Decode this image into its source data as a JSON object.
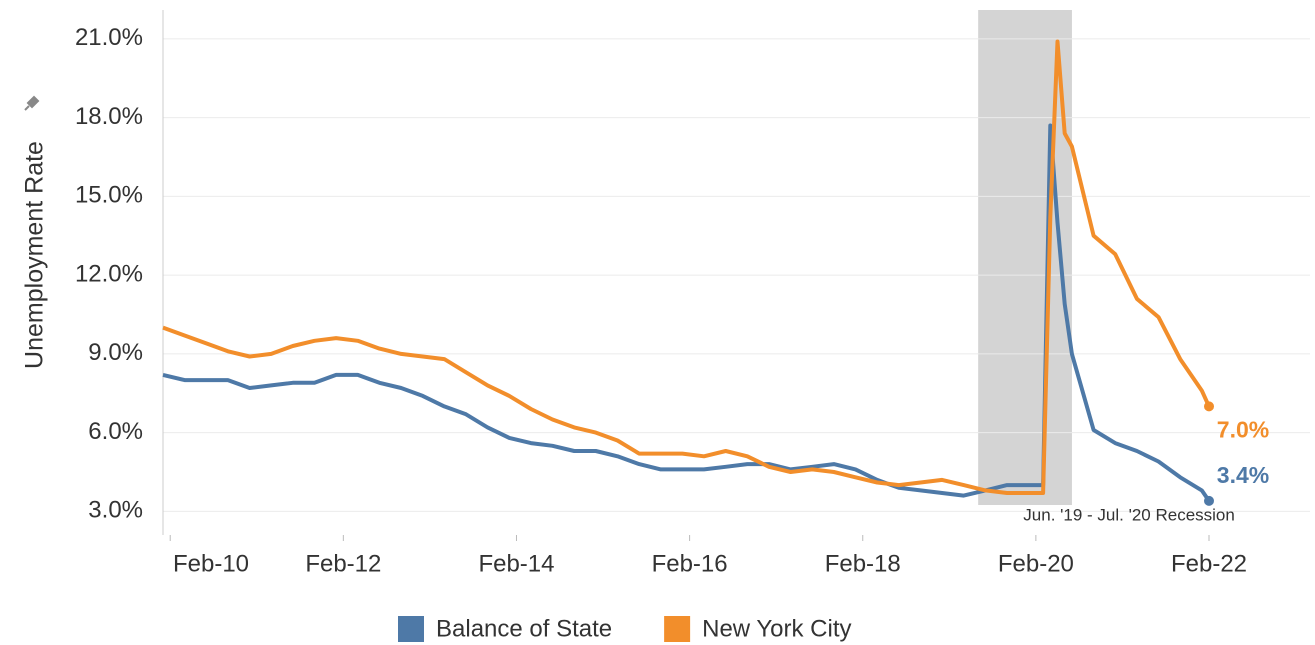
{
  "chart_data": {
    "type": "line",
    "y_label": "Unemployment Rate",
    "x": [
      "2010-01",
      "2010-04",
      "2010-07",
      "2010-10",
      "2011-01",
      "2011-04",
      "2011-07",
      "2011-10",
      "2012-01",
      "2012-04",
      "2012-07",
      "2012-10",
      "2013-01",
      "2013-04",
      "2013-07",
      "2013-10",
      "2014-01",
      "2014-04",
      "2014-07",
      "2014-10",
      "2015-01",
      "2015-04",
      "2015-07",
      "2015-10",
      "2016-01",
      "2016-04",
      "2016-07",
      "2016-10",
      "2017-01",
      "2017-04",
      "2017-07",
      "2017-10",
      "2018-01",
      "2018-04",
      "2018-07",
      "2018-10",
      "2019-01",
      "2019-04",
      "2019-07",
      "2019-10",
      "2020-01",
      "2020-02",
      "2020-03",
      "2020-04",
      "2020-05",
      "2020-06",
      "2020-07",
      "2020-10",
      "2021-01",
      "2021-04",
      "2021-07",
      "2021-10",
      "2022-01",
      "2022-02"
    ],
    "series": [
      {
        "name": "Balance of State",
        "color": "#4e79a7",
        "end_label": "3.4%",
        "values": [
          8.2,
          8.0,
          8.0,
          8.0,
          7.7,
          7.8,
          7.9,
          7.9,
          8.2,
          8.2,
          7.9,
          7.7,
          7.4,
          7.0,
          6.7,
          6.2,
          5.8,
          5.6,
          5.5,
          5.3,
          5.3,
          5.1,
          4.8,
          4.6,
          4.6,
          4.6,
          4.7,
          4.8,
          4.8,
          4.6,
          4.7,
          4.8,
          4.6,
          4.2,
          3.9,
          3.8,
          3.7,
          3.6,
          3.8,
          4.0,
          4.0,
          4.0,
          4.0,
          17.7,
          14.0,
          10.9,
          9.0,
          6.1,
          5.6,
          5.3,
          4.9,
          4.3,
          3.8,
          3.4
        ]
      },
      {
        "name": "New York City",
        "color": "#f28e2b",
        "end_label": "7.0%",
        "values": [
          10.0,
          9.7,
          9.4,
          9.1,
          8.9,
          9.0,
          9.3,
          9.5,
          9.6,
          9.5,
          9.2,
          9.0,
          8.9,
          8.8,
          8.3,
          7.8,
          7.4,
          6.9,
          6.5,
          6.2,
          6.0,
          5.7,
          5.2,
          5.2,
          5.2,
          5.1,
          5.3,
          5.1,
          4.7,
          4.5,
          4.6,
          4.5,
          4.3,
          4.1,
          4.0,
          4.1,
          4.2,
          4.0,
          3.8,
          3.7,
          3.7,
          3.7,
          3.7,
          14.2,
          20.9,
          17.4,
          16.9,
          13.5,
          12.8,
          11.1,
          10.4,
          8.8,
          7.6,
          7.0
        ]
      }
    ],
    "xlim": [
      "2010-01",
      "2023-04"
    ],
    "xticks": [
      {
        "value": "2010-02",
        "label": "Feb-10"
      },
      {
        "value": "2012-02",
        "label": "Feb-12"
      },
      {
        "value": "2014-02",
        "label": "Feb-14"
      },
      {
        "value": "2016-02",
        "label": "Feb-16"
      },
      {
        "value": "2018-02",
        "label": "Feb-18"
      },
      {
        "value": "2020-02",
        "label": "Feb-20"
      },
      {
        "value": "2022-02",
        "label": "Feb-22"
      }
    ],
    "ylim": [
      2.1,
      22.1
    ],
    "yticks": [
      {
        "value": 3,
        "label": "3.0%"
      },
      {
        "value": 6,
        "label": "6.0%"
      },
      {
        "value": 9,
        "label": "9.0%"
      },
      {
        "value": 12,
        "label": "12.0%"
      },
      {
        "value": 15,
        "label": "15.0%"
      },
      {
        "value": 18,
        "label": "18.0%"
      },
      {
        "value": 21,
        "label": "21.0%"
      }
    ],
    "grid": true,
    "shading": {
      "start": "2019-06",
      "end": "2020-07",
      "label": "Jun. '19 - Jul. '20 Recession"
    }
  }
}
